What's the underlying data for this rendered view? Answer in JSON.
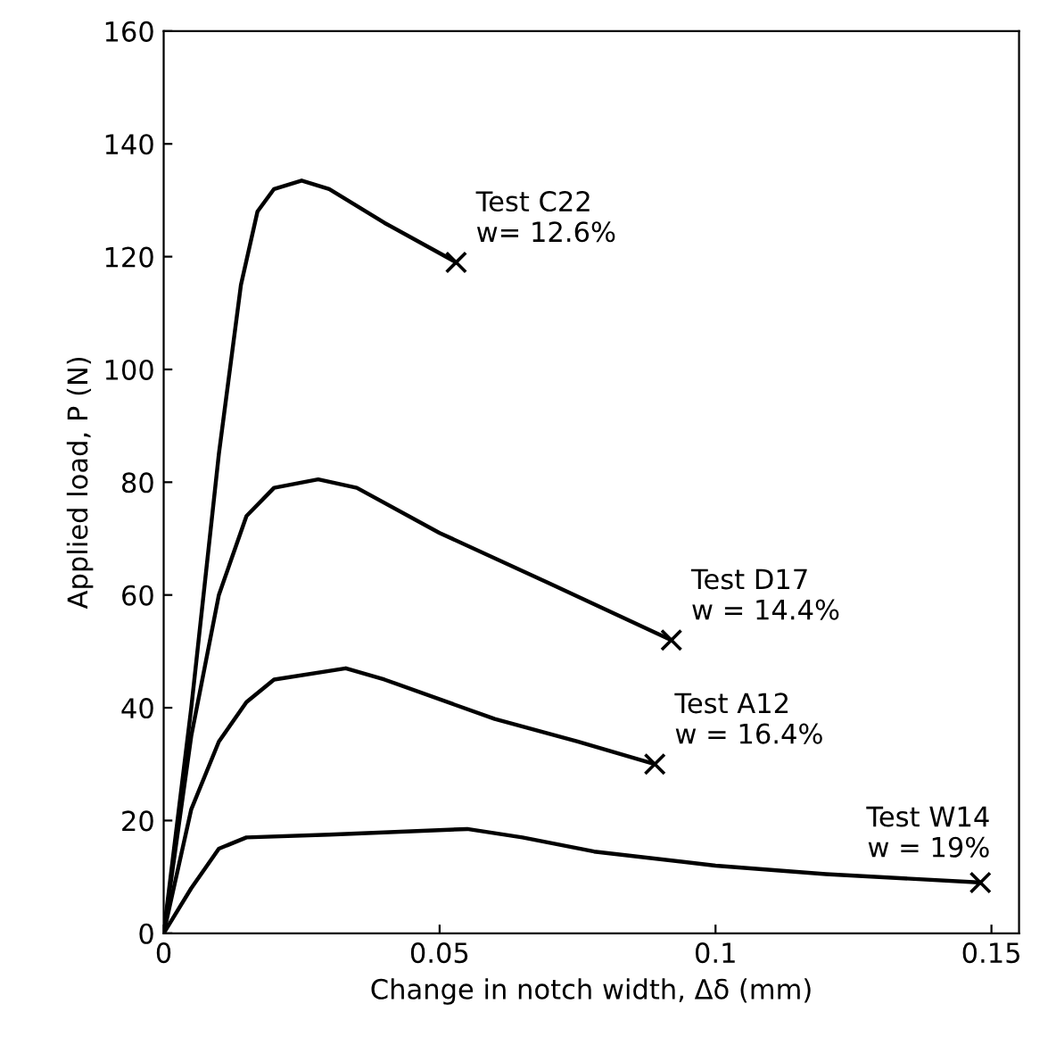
{
  "chart_data": {
    "type": "line",
    "xlabel": "Change in notch width, Δδ (mm)",
    "ylabel": "Applied load, P (N)",
    "xlim": [
      0,
      0.155
    ],
    "ylim": [
      0,
      160
    ],
    "xticks": [
      0,
      0.05,
      0.1,
      0.15
    ],
    "yticks": [
      0,
      20,
      40,
      60,
      80,
      100,
      120,
      140,
      160
    ],
    "grid": false,
    "legend": false,
    "line_style": "solid",
    "series": [
      {
        "color": "#000000",
        "marker": "none",
        "x": [
          0,
          0.005,
          0.01,
          0.014,
          0.017,
          0.02,
          0.025,
          0.03,
          0.04,
          0.053
        ],
        "values": [
          0,
          40,
          85,
          115,
          128,
          132,
          133.5,
          132,
          126,
          119
        ]
      },
      {
        "color": "#000000",
        "marker": "none",
        "x": [
          0,
          0.005,
          0.01,
          0.015,
          0.02,
          0.028,
          0.035,
          0.05,
          0.07,
          0.092
        ],
        "values": [
          0,
          35,
          60,
          74,
          79,
          80.5,
          79,
          71,
          62,
          52
        ]
      },
      {
        "color": "#000000",
        "marker": "none",
        "x": [
          0,
          0.005,
          0.01,
          0.015,
          0.02,
          0.033,
          0.04,
          0.06,
          0.075,
          0.089
        ],
        "values": [
          0,
          22,
          34,
          41,
          45,
          47,
          45,
          38,
          34,
          30
        ]
      },
      {
        "color": "#000000",
        "marker": "none",
        "x": [
          0,
          0.005,
          0.01,
          0.015,
          0.03,
          0.055,
          0.065,
          0.078,
          0.1,
          0.12,
          0.148
        ],
        "values": [
          0,
          8,
          15,
          17,
          17.5,
          18.5,
          17,
          14.5,
          12,
          10.5,
          9
        ]
      },
      {
        "type": "scatter",
        "color": "#000000",
        "marker": "cross",
        "x": [
          0.053,
          0.092,
          0.089,
          0.148
        ],
        "values": [
          119,
          52,
          30,
          9
        ]
      }
    ],
    "annotations": [
      {
        "text": "Test C22\nw= 12.6%",
        "x": 0.053,
        "y": 119
      },
      {
        "text": "Test D17\nw = 14.4%",
        "x": 0.092,
        "y": 52
      },
      {
        "text": "Test A12\nw = 16.4%",
        "x": 0.089,
        "y": 30
      },
      {
        "text": "Test W14\nw = 19%",
        "x": 0.148,
        "y": 9
      }
    ]
  }
}
